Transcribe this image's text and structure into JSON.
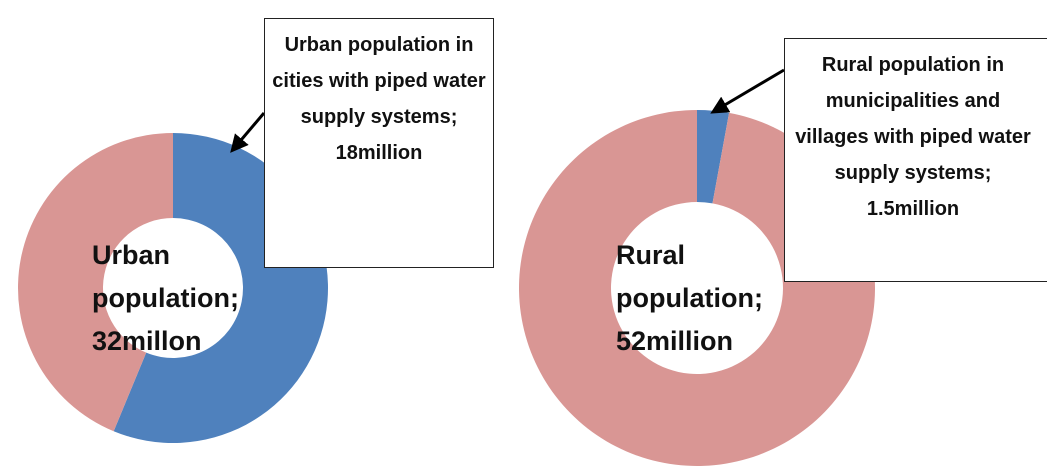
{
  "chart_data": [
    {
      "type": "donut",
      "total": 32,
      "total_label": "Urban population; 32millon",
      "part": 18,
      "part_label": "Urban population in cities with piped water supply systems; 18million",
      "colors": {
        "part": "#4f81bd",
        "rest": "#d99694"
      }
    },
    {
      "type": "donut",
      "total": 52,
      "total_label": "Rural population; 52million",
      "part": 1.5,
      "part_label": "Rural population in municipalities and villages with piped water supply systems; 1.5million",
      "colors": {
        "part": "#4f81bd",
        "rest": "#d99694"
      }
    }
  ]
}
